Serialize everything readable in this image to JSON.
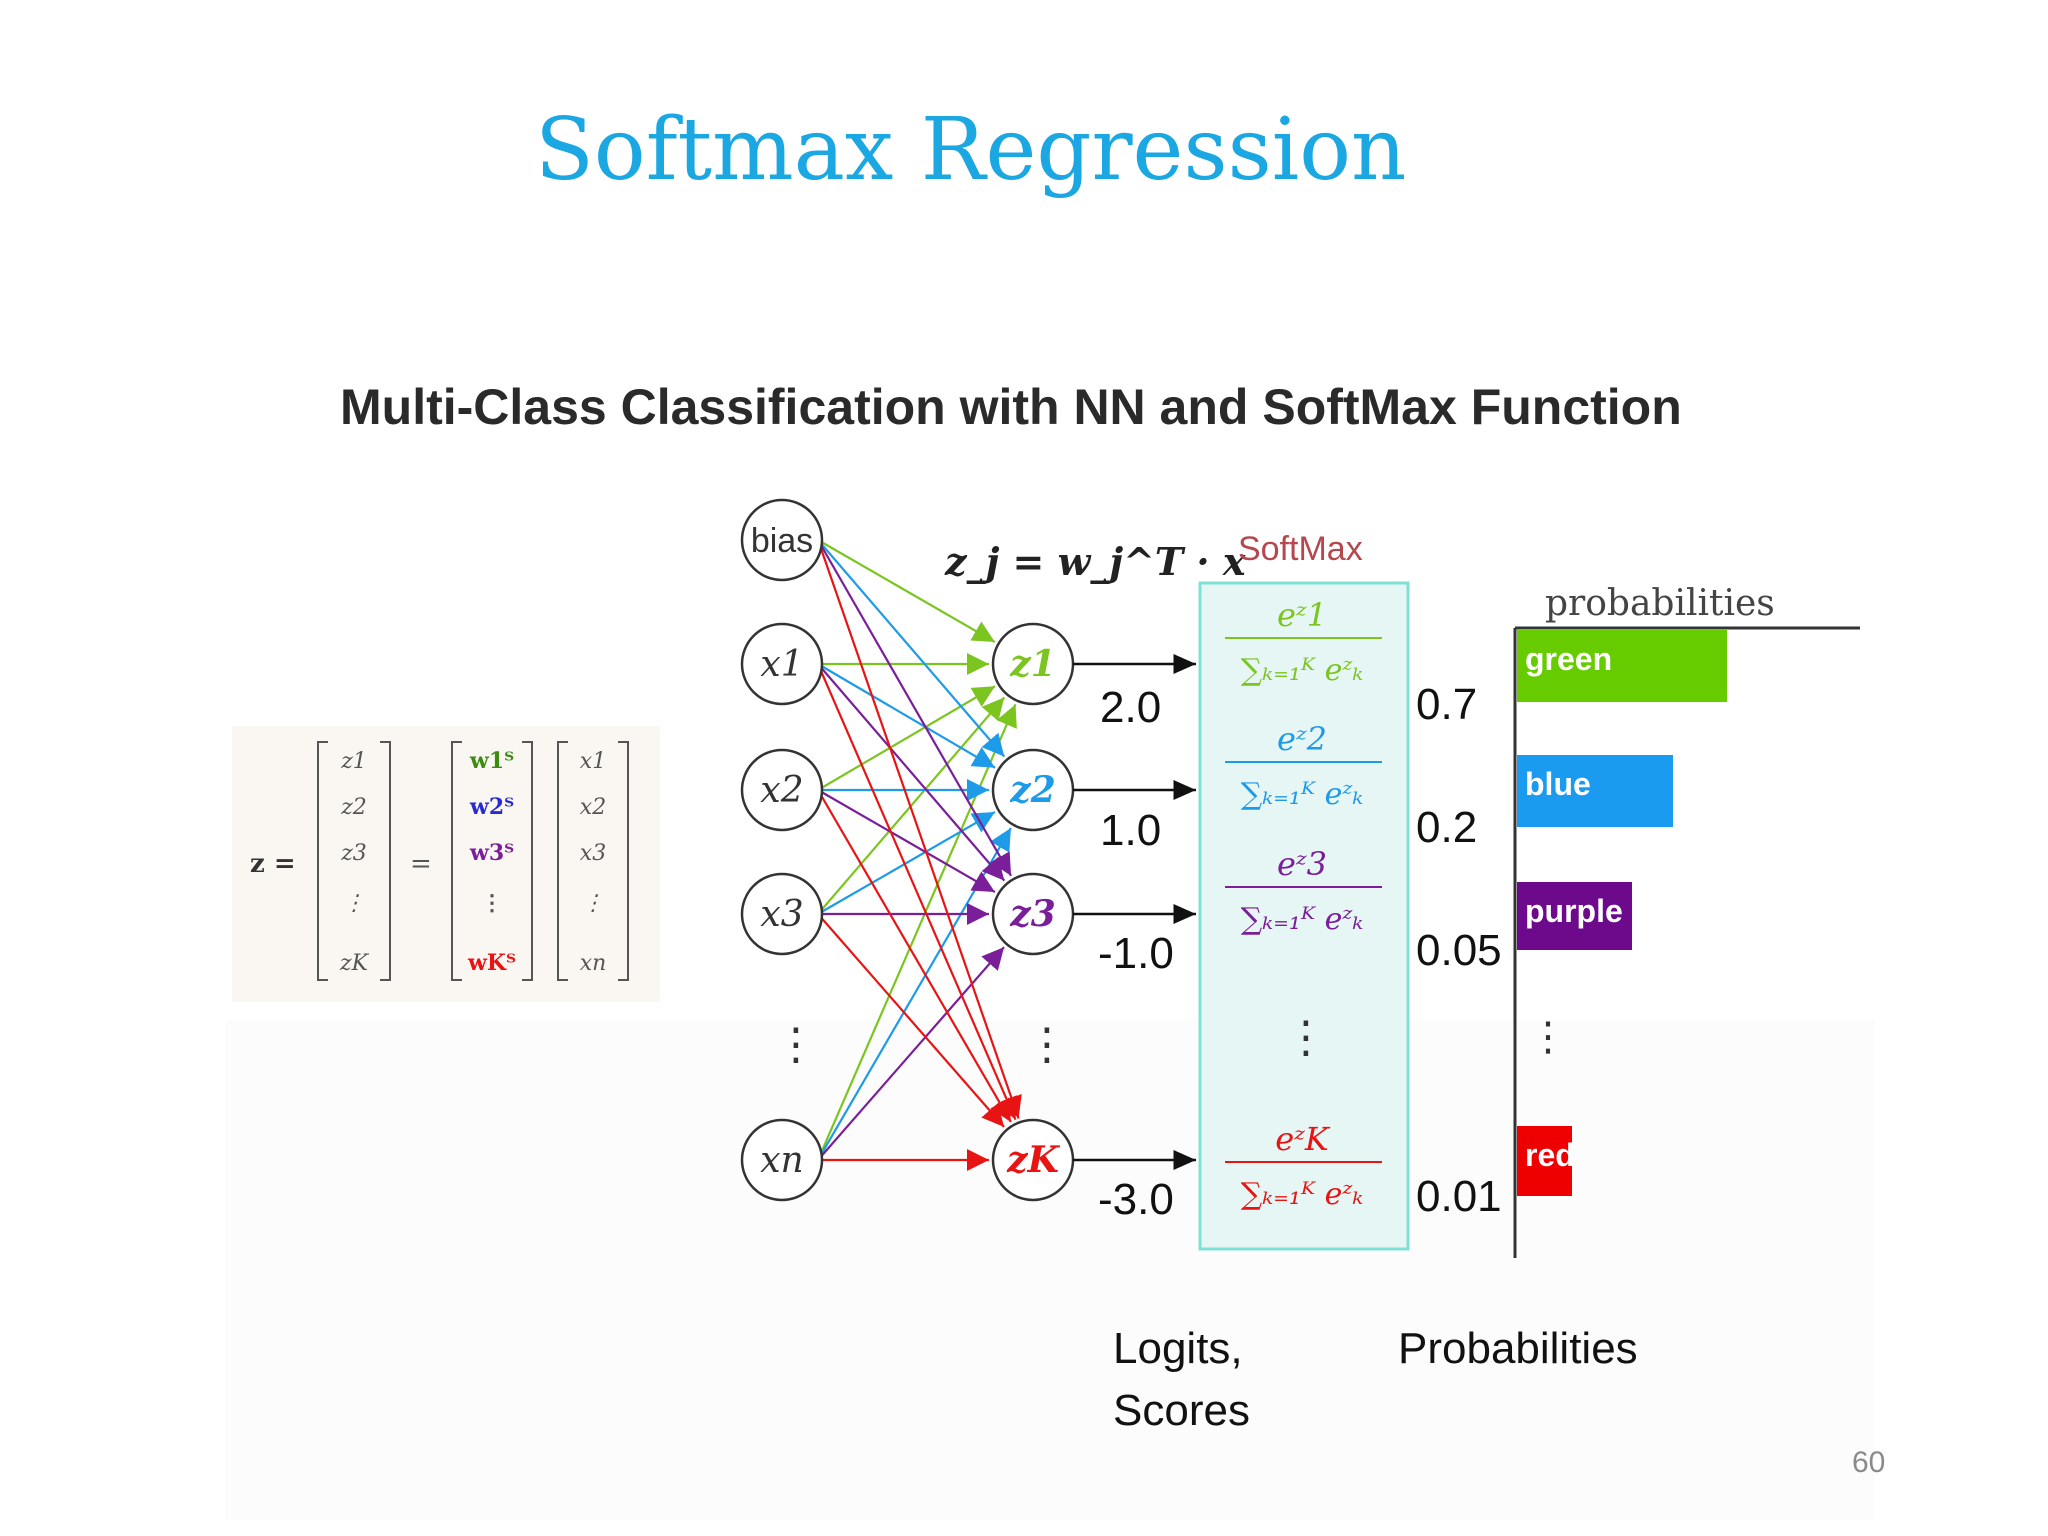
{
  "slide": {
    "title": "Softmax Regression",
    "page_number": "60"
  },
  "diagram": {
    "title": "Multi-Class Classification with NN and SoftMax Function",
    "formula": "z_j = w_j^T · x",
    "softmax_label": "SoftMax",
    "probabilities_header": "probabilities",
    "inputs": [
      "bias",
      "x1",
      "x2",
      "x3",
      "⋮",
      "xn"
    ],
    "outputs": [
      "z1",
      "z2",
      "z3",
      "⋮",
      "zK"
    ],
    "output_colors": [
      "#7cc520",
      "#1e9be8",
      "#7a1f99",
      "#555555",
      "#e81414"
    ],
    "logits": [
      "2.0",
      "1.0",
      "-1.0",
      "-3.0"
    ],
    "probabilities": [
      "0.7",
      "0.2",
      "0.05",
      "0.01"
    ],
    "bars": [
      {
        "label": "green",
        "color": "#66cc00",
        "value": 0.7
      },
      {
        "label": "blue",
        "color": "#1a9bf0",
        "value": 0.2
      },
      {
        "label": "purple",
        "color": "#6d0a8c",
        "value": 0.05
      },
      {
        "label": "red",
        "color": "#ee0000",
        "value": 0.01
      }
    ],
    "logits_caption": [
      "Logits,",
      "Scores"
    ],
    "probabilities_caption": "Probabilities",
    "matrix": {
      "lhs": "z",
      "z_entries": [
        "z1",
        "z2",
        "z3",
        "⋮",
        "zK"
      ],
      "w_entries": [
        "w1ᵀ",
        "w2ᵀ",
        "w3ᵀ",
        "⋮",
        "wKᵀ"
      ],
      "x_entries": [
        "x1",
        "x2",
        "x3",
        "⋮",
        "xn"
      ]
    }
  }
}
